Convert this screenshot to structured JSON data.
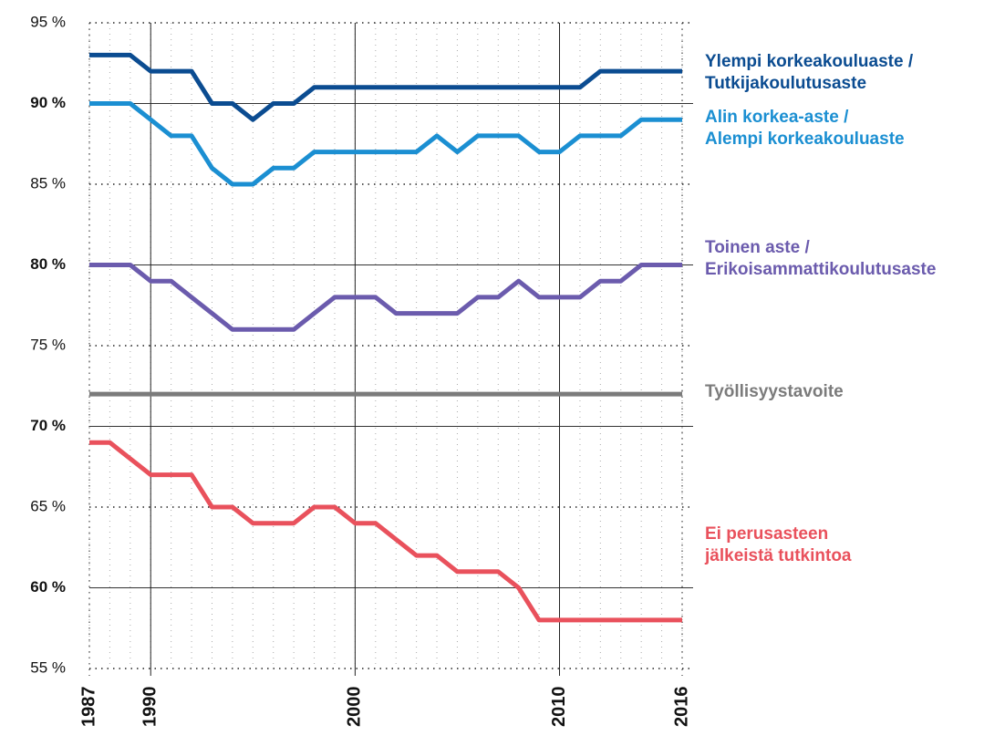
{
  "chart_data": {
    "type": "line",
    "x": [
      1987,
      1988,
      1989,
      1990,
      1991,
      1992,
      1993,
      1994,
      1995,
      1996,
      1997,
      1998,
      1999,
      2000,
      2001,
      2002,
      2003,
      2004,
      2005,
      2006,
      2007,
      2008,
      2009,
      2010,
      2011,
      2012,
      2013,
      2014,
      2015,
      2016
    ],
    "xlim": [
      1987,
      2016
    ],
    "xticks": [
      1987,
      1990,
      2000,
      2010,
      2016
    ],
    "ylim": [
      55,
      95
    ],
    "yticks": [
      {
        "value": 95,
        "label": "95 %"
      },
      {
        "value": 90,
        "label": "90 %"
      },
      {
        "value": 85,
        "label": "85 %"
      },
      {
        "value": 80,
        "label": "80 %"
      },
      {
        "value": 75,
        "label": "75 %"
      },
      {
        "value": 70,
        "label": "70 %"
      },
      {
        "value": 65,
        "label": "65 %"
      },
      {
        "value": 60,
        "label": "60 %"
      },
      {
        "value": 55,
        "label": "55 %"
      }
    ],
    "grid": true,
    "series": [
      {
        "name": "Ylempi korkeakouluaste /\nTutkijakoulutusaste",
        "color": "#0b4c91",
        "values": [
          93,
          93,
          93,
          92,
          92,
          92,
          90,
          90,
          89,
          90,
          90,
          91,
          91,
          91,
          91,
          91,
          91,
          91,
          91,
          91,
          91,
          91,
          91,
          91,
          91,
          92,
          92,
          92,
          92,
          92
        ]
      },
      {
        "name": "Alin korkea-aste /\nAlempi korkeakouluaste",
        "color": "#1b8fd2",
        "values": [
          90,
          90,
          90,
          89,
          88,
          88,
          86,
          85,
          85,
          86,
          86,
          87,
          87,
          87,
          87,
          87,
          87,
          88,
          87,
          88,
          88,
          88,
          87,
          87,
          88,
          88,
          88,
          89,
          89,
          89
        ]
      },
      {
        "name": "Toinen aste /\nErikoisammattikoulutusaste",
        "color": "#6b5bad",
        "values": [
          80,
          80,
          80,
          79,
          79,
          78,
          77,
          76,
          76,
          76,
          76,
          77,
          78,
          78,
          78,
          77,
          77,
          77,
          77,
          78,
          78,
          79,
          78,
          78,
          78,
          79,
          79,
          80,
          80,
          80
        ]
      },
      {
        "name": "Työllisyystavoite",
        "color": "#7b7b7b",
        "values": [
          72,
          72,
          72,
          72,
          72,
          72,
          72,
          72,
          72,
          72,
          72,
          72,
          72,
          72,
          72,
          72,
          72,
          72,
          72,
          72,
          72,
          72,
          72,
          72,
          72,
          72,
          72,
          72,
          72,
          72
        ]
      },
      {
        "name": "Ei perusasteen\njälkeistä tutkintoa",
        "color": "#e9515c",
        "values": [
          69,
          69,
          68,
          67,
          67,
          67,
          65,
          65,
          64,
          64,
          64,
          65,
          65,
          64,
          64,
          63,
          62,
          62,
          61,
          61,
          61,
          60,
          58,
          58,
          58,
          58,
          58,
          58,
          58,
          58
        ]
      }
    ]
  }
}
